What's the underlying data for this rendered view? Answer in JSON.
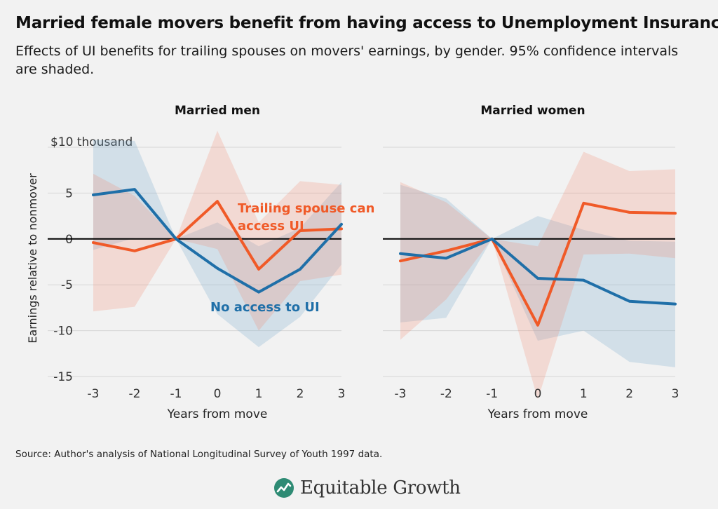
{
  "title": "Married female movers benefit from having access to Unemployment Insurance",
  "subtitle": "Effects of UI benefits for trailing spouses on movers' earnings, by gender. 95% confidence intervals are shaded.",
  "source": "Source: Author's analysis of National Longitudinal Survey of Youth 1997 data.",
  "brand": "Equitable Growth",
  "colors": {
    "ui": "#f05a28",
    "noui": "#1f6fa8",
    "ui_band": "rgba(244,120,90,0.20)",
    "noui_band": "rgba(130,175,210,0.28)",
    "grid": "#d6d6d6",
    "zero": "#000000",
    "logo": "#2e8b74"
  },
  "y_axis_label": "Earnings relative to nonmover",
  "chart_data": [
    {
      "type": "line",
      "title": "Married men",
      "xlabel": "Years from move",
      "ylabel": "Earnings relative to nonmover",
      "x": [
        -3,
        -2,
        -1,
        0,
        1,
        2,
        3
      ],
      "x_tick_labels": [
        "-3",
        "-2",
        "-1",
        "0",
        "1",
        "2",
        "3"
      ],
      "ylim": [
        -15,
        10
      ],
      "y_ticks": [
        10,
        5,
        0,
        -5,
        -10,
        -15
      ],
      "y_tick_labels": [
        "$10 thousand",
        "5",
        "0",
        "-5",
        "-10",
        "-15"
      ],
      "series": [
        {
          "name": "No access to UI",
          "color_key": "noui",
          "values": [
            4.8,
            5.4,
            0,
            -3.2,
            -5.8,
            -3.3,
            1.6
          ],
          "ci_upper": [
            10.8,
            10.7,
            0,
            1.8,
            -0.8,
            1.2,
            6.2
          ],
          "ci_lower": [
            -1.2,
            0.1,
            0,
            -8.2,
            -11.8,
            -8.5,
            -2.8
          ]
        },
        {
          "name": "Trailing spouse can access UI",
          "color_key": "ui",
          "values": [
            -0.4,
            -1.3,
            0,
            4.1,
            -3.3,
            0.9,
            1.1
          ],
          "ci_upper": [
            7.1,
            4.7,
            0,
            11.8,
            1.8,
            6.3,
            5.9
          ],
          "ci_lower": [
            -7.9,
            -7.4,
            0,
            -1.1,
            -10.0,
            -4.6,
            -3.9
          ]
        }
      ],
      "annotations": [
        {
          "text": "Trailing spouse can",
          "series": "Trailing spouse can access UI"
        },
        {
          "text": "access UI",
          "series": "Trailing spouse can access UI"
        },
        {
          "text": "No access to UI",
          "series": "No access to UI"
        }
      ]
    },
    {
      "type": "line",
      "title": "Married women",
      "xlabel": "Years from move",
      "ylabel": "",
      "x": [
        -3,
        -2,
        -1,
        0,
        1,
        2,
        3
      ],
      "x_tick_labels": [
        "-3",
        "-2",
        "-1",
        "0",
        "1",
        "2",
        "3"
      ],
      "ylim": [
        -15,
        10
      ],
      "y_ticks": [
        10,
        5,
        0,
        -5,
        -10,
        -15
      ],
      "series": [
        {
          "name": "No access to UI",
          "color_key": "noui",
          "values": [
            -1.6,
            -2.1,
            0,
            -4.3,
            -4.5,
            -6.8,
            -7.1
          ],
          "ci_upper": [
            5.9,
            4.4,
            0,
            2.5,
            1.0,
            -0.2,
            -0.3
          ],
          "ci_lower": [
            -9.1,
            -8.6,
            0,
            -11.1,
            -10.0,
            -13.4,
            -14.0
          ]
        },
        {
          "name": "Trailing spouse can access UI",
          "color_key": "ui",
          "values": [
            -2.4,
            -1.3,
            0,
            -9.4,
            3.9,
            2.9,
            2.8
          ],
          "ci_upper": [
            6.2,
            4.0,
            0,
            -0.8,
            9.5,
            7.4,
            7.6
          ],
          "ci_lower": [
            -11.0,
            -6.6,
            0,
            -17.5,
            -1.7,
            -1.6,
            -2.1
          ]
        }
      ]
    }
  ]
}
